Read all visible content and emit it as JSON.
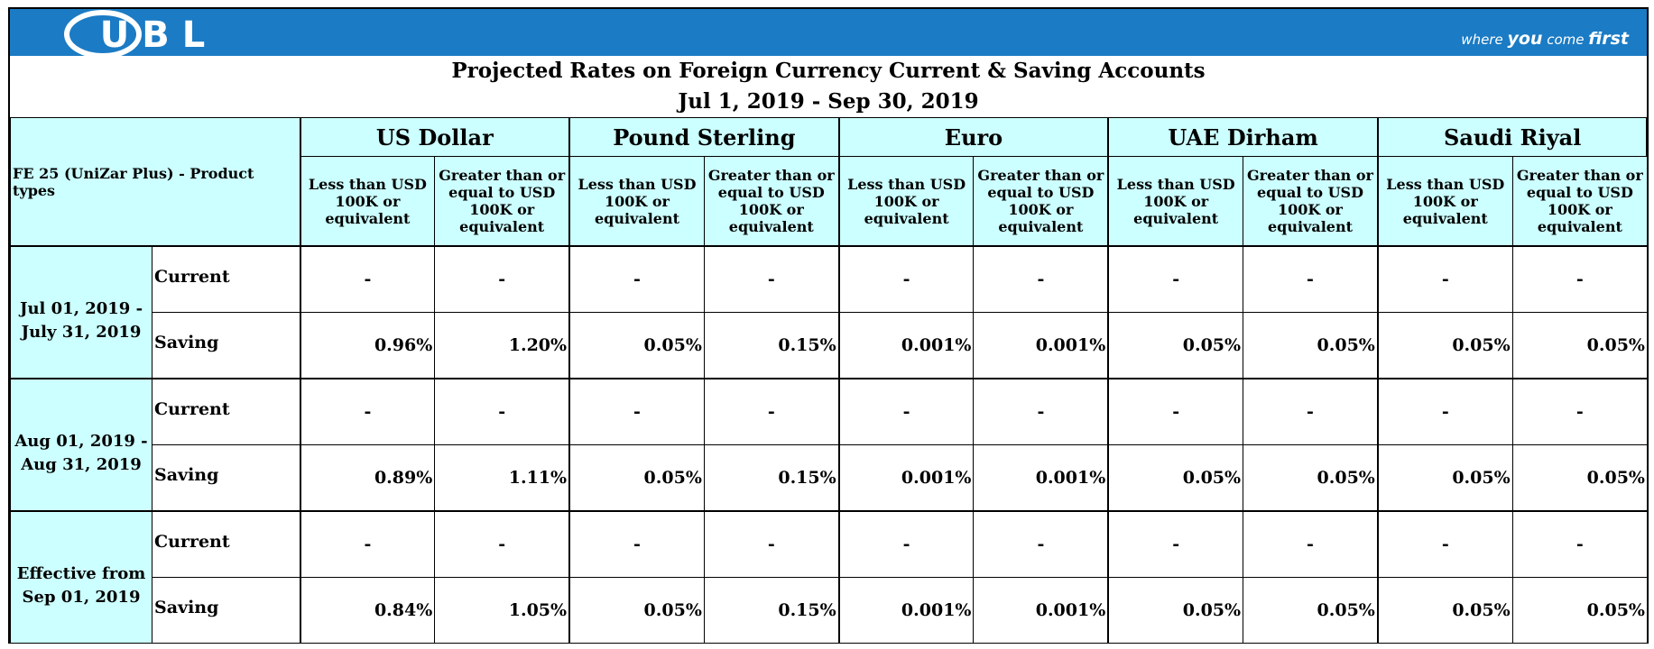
{
  "header": {
    "logo": "UBL",
    "tagline": [
      "where",
      "you",
      "come",
      "first"
    ]
  },
  "title": [
    "Projected Rates on Foreign Currency Current & Saving Accounts",
    "Jul 1, 2019 - Sep 30, 2019"
  ],
  "table": {
    "corner": "FE 25 (UniZar Plus) - Product types",
    "currencies": [
      "US Dollar",
      "Pound Sterling",
      "Euro",
      "UAE Dirham",
      "Saudi Riyal"
    ],
    "subheaders": [
      "Less than USD 100K or equivalent",
      "Greater than or equal to USD 100K or equivalent"
    ],
    "periods": [
      {
        "label": "Jul 01, 2019 - July 31, 2019",
        "rows": [
          {
            "type": "Current",
            "values": [
              "-",
              "-",
              "-",
              "-",
              "-",
              "-",
              "-",
              "-",
              "-",
              "-"
            ]
          },
          {
            "type": "Saving",
            "values": [
              "0.96%",
              "1.20%",
              "0.05%",
              "0.15%",
              "0.001%",
              "0.001%",
              "0.05%",
              "0.05%",
              "0.05%",
              "0.05%"
            ]
          }
        ]
      },
      {
        "label": "Aug 01, 2019 - Aug 31, 2019",
        "rows": [
          {
            "type": "Current",
            "values": [
              "-",
              "-",
              "-",
              "-",
              "-",
              "-",
              "-",
              "-",
              "-",
              "-"
            ]
          },
          {
            "type": "Saving",
            "values": [
              "0.89%",
              "1.11%",
              "0.05%",
              "0.15%",
              "0.001%",
              "0.001%",
              "0.05%",
              "0.05%",
              "0.05%",
              "0.05%"
            ]
          }
        ]
      },
      {
        "label": "Effective from Sep 01, 2019",
        "rows": [
          {
            "type": "Current",
            "values": [
              "-",
              "-",
              "-",
              "-",
              "-",
              "-",
              "-",
              "-",
              "-",
              "-"
            ]
          },
          {
            "type": "Saving",
            "values": [
              "0.84%",
              "1.05%",
              "0.05%",
              "0.15%",
              "0.001%",
              "0.001%",
              "0.05%",
              "0.05%",
              "0.05%",
              "0.05%"
            ]
          }
        ]
      }
    ]
  }
}
